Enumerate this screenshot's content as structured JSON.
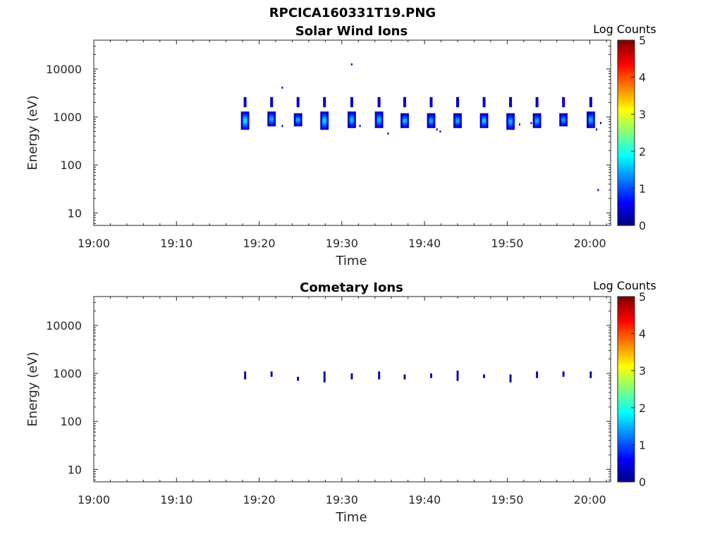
{
  "figure_title": "RPCICA160331T19.PNG",
  "chart_data": [
    {
      "type": "heatmap",
      "title": "Solar Wind Ions",
      "xlabel": "Time",
      "ylabel": "Energy (eV)",
      "x_ticks": [
        "19:00",
        "19:10",
        "19:20",
        "19:30",
        "19:40",
        "19:50",
        "20:00"
      ],
      "y_ticks": [
        "10",
        "100",
        "1000",
        "10000"
      ],
      "y_scale": "log",
      "ylim": [
        5.5,
        40000
      ],
      "xlim_minutes": [
        0,
        62.5
      ],
      "colorbar": {
        "label": "Log Counts",
        "ticks": [
          "0",
          "1",
          "2",
          "3",
          "4",
          "5"
        ],
        "range": [
          0,
          5
        ],
        "colormap": "jet"
      },
      "sweeps": [
        {
          "t": 18.3,
          "emin": 550,
          "emax": 1300,
          "peak": 1.9,
          "upper": true
        },
        {
          "t": 21.5,
          "emin": 650,
          "emax": 1300,
          "peak": 1.6,
          "upper": true
        },
        {
          "t": 24.7,
          "emin": 650,
          "emax": 1200,
          "peak": 1.6,
          "upper": true
        },
        {
          "t": 27.9,
          "emin": 550,
          "emax": 1300,
          "peak": 1.8,
          "upper": true
        },
        {
          "t": 31.2,
          "emin": 600,
          "emax": 1300,
          "peak": 1.7,
          "upper": true
        },
        {
          "t": 34.5,
          "emin": 600,
          "emax": 1300,
          "peak": 1.7,
          "upper": true
        },
        {
          "t": 37.6,
          "emin": 600,
          "emax": 1200,
          "peak": 1.7,
          "upper": true
        },
        {
          "t": 40.8,
          "emin": 600,
          "emax": 1200,
          "peak": 1.6,
          "upper": true
        },
        {
          "t": 44.0,
          "emin": 600,
          "emax": 1200,
          "peak": 1.6,
          "upper": true
        },
        {
          "t": 47.2,
          "emin": 600,
          "emax": 1200,
          "peak": 1.8,
          "upper": true
        },
        {
          "t": 50.4,
          "emin": 550,
          "emax": 1200,
          "peak": 1.6,
          "upper": true
        },
        {
          "t": 53.6,
          "emin": 600,
          "emax": 1200,
          "peak": 1.6,
          "upper": true
        },
        {
          "t": 56.8,
          "emin": 650,
          "emax": 1200,
          "peak": 1.5,
          "upper": true
        },
        {
          "t": 60.1,
          "emin": 600,
          "emax": 1300,
          "peak": 1.6,
          "upper": true
        }
      ],
      "specks": [
        {
          "t": 31.2,
          "e": 12500,
          "v": 0.2
        },
        {
          "t": 22.8,
          "e": 4100,
          "v": 0.2
        },
        {
          "t": 35.6,
          "e": 450,
          "v": 0.2
        },
        {
          "t": 22.8,
          "e": 650,
          "v": 0.2
        },
        {
          "t": 32.2,
          "e": 650,
          "v": 0.2
        },
        {
          "t": 41.5,
          "e": 550,
          "v": 0.3
        },
        {
          "t": 41.9,
          "e": 500,
          "v": 0.3
        },
        {
          "t": 51.5,
          "e": 700,
          "v": 0.2
        },
        {
          "t": 52.9,
          "e": 750,
          "v": 0.2
        },
        {
          "t": 56.4,
          "e": 800,
          "v": 0.2
        },
        {
          "t": 60.8,
          "e": 550,
          "v": 0.3
        },
        {
          "t": 61.3,
          "e": 750,
          "v": 0.3
        },
        {
          "t": 61.0,
          "e": 30,
          "v": 0.2
        }
      ]
    },
    {
      "type": "heatmap",
      "title": "Cometary Ions",
      "xlabel": "Time",
      "ylabel": "Energy (eV)",
      "x_ticks": [
        "19:00",
        "19:10",
        "19:20",
        "19:30",
        "19:40",
        "19:50",
        "20:00"
      ],
      "y_ticks": [
        "10",
        "100",
        "1000",
        "10000"
      ],
      "y_scale": "log",
      "ylim": [
        5.5,
        40000
      ],
      "xlim_minutes": [
        0,
        62.5
      ],
      "colorbar": {
        "label": "Log Counts",
        "ticks": [
          "0",
          "1",
          "2",
          "3",
          "4",
          "5"
        ],
        "range": [
          0,
          5
        ],
        "colormap": "jet"
      },
      "marks": [
        {
          "t": 18.3,
          "emin": 750,
          "emax": 1100,
          "v": 0.2
        },
        {
          "t": 21.5,
          "emin": 850,
          "emax": 1100,
          "v": 0.2
        },
        {
          "t": 24.7,
          "emin": 700,
          "emax": 850,
          "v": 0.2
        },
        {
          "t": 27.9,
          "emin": 650,
          "emax": 1100,
          "v": 0.25
        },
        {
          "t": 31.2,
          "emin": 750,
          "emax": 1000,
          "v": 0.25
        },
        {
          "t": 34.5,
          "emin": 750,
          "emax": 1100,
          "v": 0.25
        },
        {
          "t": 37.6,
          "emin": 750,
          "emax": 950,
          "v": 0.2
        },
        {
          "t": 40.8,
          "emin": 800,
          "emax": 1000,
          "v": 0.2
        },
        {
          "t": 44.0,
          "emin": 700,
          "emax": 1150,
          "v": 0.25
        },
        {
          "t": 47.2,
          "emin": 800,
          "emax": 950,
          "v": 0.2
        },
        {
          "t": 50.4,
          "emin": 650,
          "emax": 950,
          "v": 0.25
        },
        {
          "t": 53.6,
          "emin": 800,
          "emax": 1100,
          "v": 0.25
        },
        {
          "t": 56.8,
          "emin": 850,
          "emax": 1100,
          "v": 0.25
        },
        {
          "t": 60.1,
          "emin": 800,
          "emax": 1100,
          "v": 0.2
        }
      ]
    }
  ]
}
